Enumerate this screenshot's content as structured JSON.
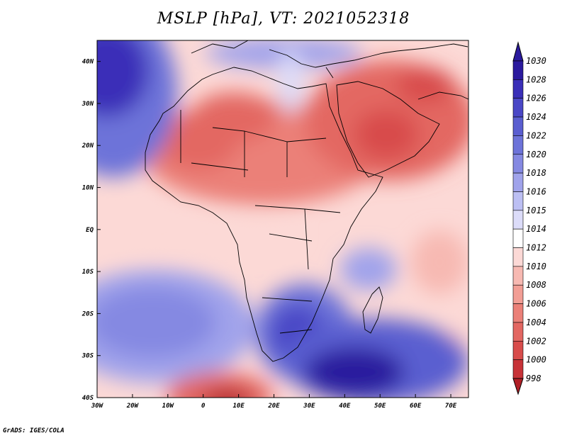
{
  "title": "MSLP [hPa], VT: 2021052318",
  "footer": "GrADS: IGES/COLA",
  "map": {
    "lon_range": [
      -30,
      75
    ],
    "lat_range": [
      -40,
      45
    ],
    "lon_ticks": [
      {
        "value": -30,
        "label": "30W"
      },
      {
        "value": -20,
        "label": "20W"
      },
      {
        "value": -10,
        "label": "10W"
      },
      {
        "value": 0,
        "label": "0"
      },
      {
        "value": 10,
        "label": "10E"
      },
      {
        "value": 20,
        "label": "20E"
      },
      {
        "value": 30,
        "label": "30E"
      },
      {
        "value": 40,
        "label": "40E"
      },
      {
        "value": 50,
        "label": "50E"
      },
      {
        "value": 60,
        "label": "60E"
      },
      {
        "value": 70,
        "label": "70E"
      }
    ],
    "lat_ticks": [
      {
        "value": 40,
        "label": "40N"
      },
      {
        "value": 30,
        "label": "30N"
      },
      {
        "value": 20,
        "label": "20N"
      },
      {
        "value": 10,
        "label": "10N"
      },
      {
        "value": 0,
        "label": "EQ"
      },
      {
        "value": -10,
        "label": "10S"
      },
      {
        "value": -20,
        "label": "20S"
      },
      {
        "value": -30,
        "label": "30S"
      },
      {
        "value": -40,
        "label": "40S"
      }
    ]
  },
  "colorbar": {
    "levels": [
      "1030",
      "1028",
      "1026",
      "1024",
      "1022",
      "1020",
      "1018",
      "1016",
      "1015",
      "1014",
      "1012",
      "1010",
      "1008",
      "1006",
      "1004",
      "1002",
      "1000",
      "998"
    ],
    "colors": [
      "#2b1a9e",
      "#3a2fb8",
      "#4a47c6",
      "#5a5ed0",
      "#6d73d9",
      "#8589e2",
      "#a0a3eb",
      "#bcbff3",
      "#dcdcf9",
      "#ffffff",
      "#fcd9d6",
      "#f7b9b2",
      "#f29e95",
      "#eb8078",
      "#e36762",
      "#d84c4b",
      "#c73338",
      "#b01f26"
    ]
  },
  "regions": [
    {
      "name": "high-northwest-atlantic",
      "color": "#3a2fb8",
      "lon": -26,
      "lat": 37
    },
    {
      "name": "high-south-atlantic",
      "color": "#6d73d9",
      "lon": -12,
      "lat": -22
    },
    {
      "name": "high-southern-africa",
      "color": "#3a2fb8",
      "lon": 25,
      "lat": -23
    },
    {
      "name": "high-south-indian",
      "color": "#2b1a9e",
      "lon": 44,
      "lat": -32
    },
    {
      "name": "low-arabia",
      "color": "#d84c4b",
      "lon": 48,
      "lat": 20
    },
    {
      "name": "low-angola-coast",
      "color": "#b01f26",
      "lon": 5,
      "lat": -40
    }
  ]
}
